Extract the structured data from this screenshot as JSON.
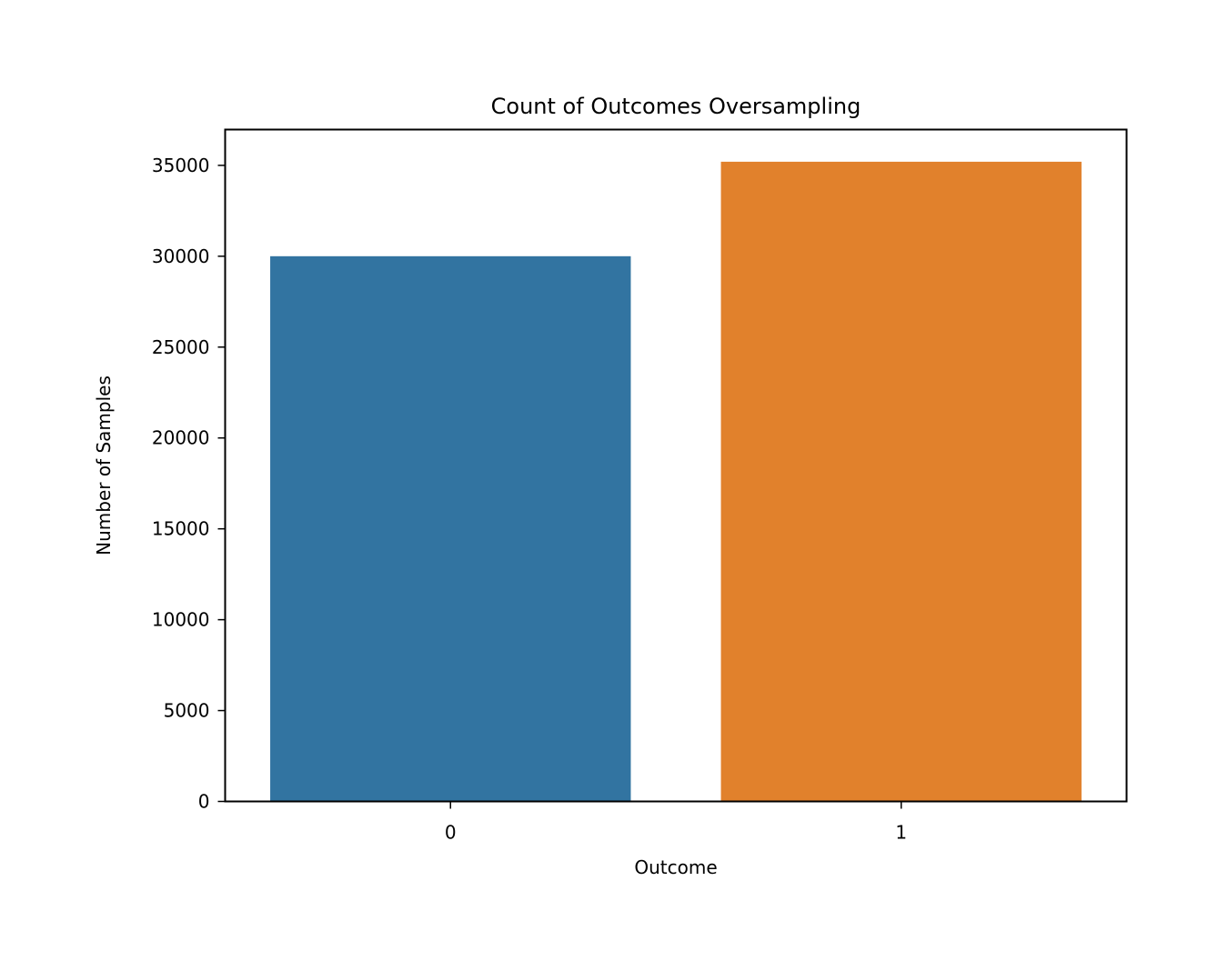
{
  "chart_data": {
    "type": "bar",
    "title": "Count of Outcomes Oversampling",
    "xlabel": "Outcome",
    "ylabel": "Number of Samples",
    "categories": [
      "0",
      "1"
    ],
    "values": [
      30000,
      35200
    ],
    "colors": [
      "#3274a1",
      "#e1812c"
    ],
    "ylim": [
      0,
      36970
    ],
    "yticks": [
      0,
      5000,
      10000,
      15000,
      20000,
      25000,
      30000,
      35000
    ],
    "grid": false,
    "legend": "none"
  }
}
